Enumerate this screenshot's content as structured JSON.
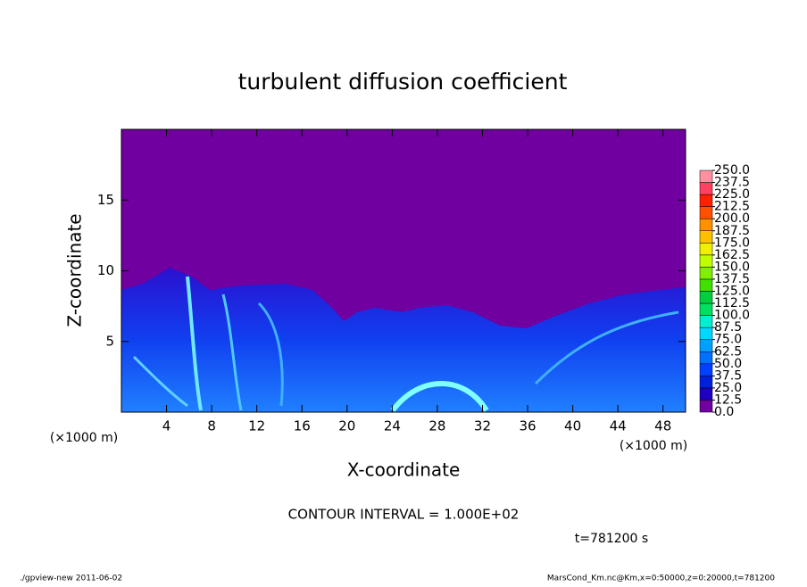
{
  "chart_data": {
    "type": "contour",
    "title": "turbulent diffusion coefficient",
    "xlabel": "X-coordinate",
    "ylabel": "Z-coordinate",
    "xunit": "(×1000 m)",
    "xlim": [
      0,
      50
    ],
    "xticks": [
      4,
      8,
      12,
      16,
      20,
      24,
      28,
      32,
      36,
      40,
      44,
      48
    ],
    "ylim": [
      0,
      20
    ],
    "yticks": [
      5,
      10,
      15
    ],
    "colorbar": {
      "levels": [
        {
          "value": 0,
          "label": "0.0"
        },
        12.5,
        25,
        37.5,
        50,
        62.5,
        75,
        87.5,
        100,
        112.5,
        125,
        137.5,
        150,
        162.5,
        175,
        187.5,
        200,
        212.5,
        225,
        237.5,
        250
      ],
      "level_labels": [
        "0.0",
        "12.5",
        "25.0",
        "37.5",
        "50.0",
        "62.5",
        "75.0",
        "87.5",
        "100.0",
        "112.5",
        "125.0",
        "137.5",
        "150.0",
        "162.5",
        "175.0",
        "187.5",
        "200.0",
        "212.5",
        "225.0",
        "237.5",
        "250.0"
      ],
      "colors": [
        "#7000a0",
        "#2000c0",
        "#0020e0",
        "#0040ff",
        "#0070ff",
        "#00a0ff",
        "#00d8ff",
        "#00f0d0",
        "#00e060",
        "#00d040",
        "#40e000",
        "#80f000",
        "#c0ff00",
        "#f0f000",
        "#ffc000",
        "#ff9000",
        "#ff5000",
        "#ff2000",
        "#ff4060",
        "#ff90a0"
      ]
    },
    "contour_interval": "CONTOUR INTERVAL = 1.000E+02",
    "time": "t=781200 s",
    "footer_left": "./gpview-new  2011-06-02",
    "footer_right": "MarsCond_Km.nc@Km,x=0:50000,z=0:20000,t=781200"
  }
}
